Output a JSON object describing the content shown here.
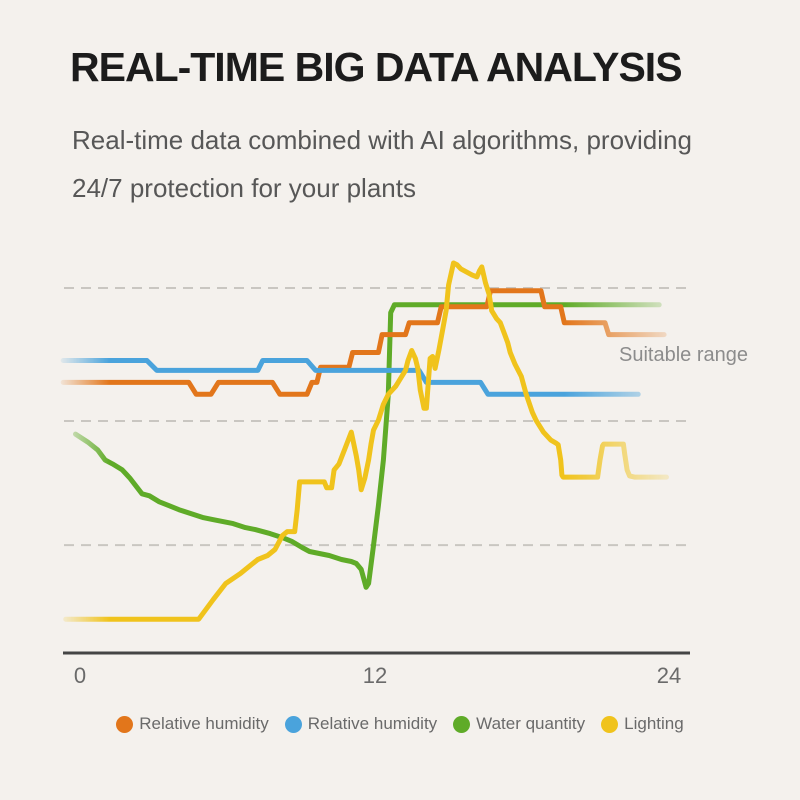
{
  "header": {
    "title": "REAL-TIME BIG DATA ANALYSIS",
    "subtitle_line1": "Real-time data combined with AI algorithms, providing",
    "subtitle_line2": "24/7 protection for your plants"
  },
  "colors": {
    "background": "#f4f1ed",
    "title": "#1c1c1c",
    "subtitle": "#575757",
    "gridline": "#c9c6c1",
    "axis": "#454545",
    "tick_labels": "#6a6a6a",
    "legend_text": "#6a6a6a",
    "annotation_text": "#8c8c8c"
  },
  "chart_data": {
    "type": "line",
    "title": "",
    "xlabel": "",
    "ylabel": "",
    "x_axis": {
      "tick_labels": [
        "0",
        "12",
        "24"
      ],
      "range_hours": [
        0,
        24
      ]
    },
    "y_axis": {
      "visible": false,
      "unit": "percent-of-plot-height",
      "range": [
        0,
        100
      ]
    },
    "grid": "dashed-horizontal",
    "gridlines_pct": [
      91.7,
      58.3,
      27.1
    ],
    "annotation": "Suitable range",
    "legend_position": "bottom",
    "edge_fade": true,
    "series": [
      {
        "name": "Relative humidity",
        "color": "#E2761B",
        "points": [
          [
            -0.6,
            68
          ],
          [
            4.5,
            68
          ],
          [
            4.8,
            65
          ],
          [
            5.4,
            65
          ],
          [
            5.7,
            68
          ],
          [
            7.9,
            68
          ],
          [
            8.2,
            65
          ],
          [
            9.3,
            65
          ],
          [
            9.5,
            68
          ],
          [
            9.7,
            68
          ],
          [
            9.85,
            71.8
          ],
          [
            11.0,
            71.8
          ],
          [
            11.15,
            75.5
          ],
          [
            12.2,
            75.5
          ],
          [
            12.35,
            80
          ],
          [
            13.3,
            80
          ],
          [
            13.45,
            83
          ],
          [
            14.6,
            83
          ],
          [
            14.75,
            87
          ],
          [
            16.6,
            87
          ],
          [
            16.75,
            91
          ],
          [
            18.8,
            91
          ],
          [
            18.95,
            87
          ],
          [
            19.6,
            87
          ],
          [
            19.75,
            83
          ],
          [
            21.4,
            83
          ],
          [
            21.55,
            80
          ],
          [
            23.8,
            80
          ]
        ]
      },
      {
        "name": "Relative humidity",
        "color": "#4AA3DC",
        "points": [
          [
            -0.6,
            73.5
          ],
          [
            2.8,
            73.5
          ],
          [
            3.2,
            71
          ],
          [
            7.3,
            71
          ],
          [
            7.5,
            73.5
          ],
          [
            9.3,
            73.5
          ],
          [
            9.65,
            71
          ],
          [
            13.85,
            71
          ],
          [
            14.15,
            68
          ],
          [
            16.35,
            68
          ],
          [
            16.65,
            65
          ],
          [
            22.75,
            65
          ]
        ]
      },
      {
        "name": "Water quantity",
        "color": "#5FAB28",
        "points": [
          [
            -0.1,
            55
          ],
          [
            0.4,
            53
          ],
          [
            0.8,
            51
          ],
          [
            1.1,
            48.5
          ],
          [
            1.4,
            47.5
          ],
          [
            1.8,
            46
          ],
          [
            2.1,
            44
          ],
          [
            2.6,
            40
          ],
          [
            2.9,
            39.5
          ],
          [
            3.3,
            38
          ],
          [
            3.7,
            37
          ],
          [
            4.1,
            36
          ],
          [
            5.1,
            34
          ],
          [
            5.5,
            33.5
          ],
          [
            6.3,
            32.5
          ],
          [
            6.8,
            31.5
          ],
          [
            7.2,
            31
          ],
          [
            7.8,
            30
          ],
          [
            8.3,
            29
          ],
          [
            8.7,
            28
          ],
          [
            9.1,
            26.5
          ],
          [
            9.4,
            25.5
          ],
          [
            9.8,
            25
          ],
          [
            10.2,
            24.5
          ],
          [
            10.7,
            23.5
          ],
          [
            11.1,
            23
          ],
          [
            11.3,
            22.5
          ],
          [
            11.5,
            21
          ],
          [
            11.7,
            16.5
          ],
          [
            11.8,
            17.5
          ],
          [
            12.0,
            27
          ],
          [
            12.2,
            37
          ],
          [
            12.4,
            48.5
          ],
          [
            12.6,
            65
          ],
          [
            12.7,
            85.5
          ],
          [
            12.85,
            87.5
          ],
          [
            23.6,
            87.5
          ]
        ]
      },
      {
        "name": "Lighting",
        "color": "#F0C31C",
        "points": [
          [
            -0.5,
            8.5
          ],
          [
            4.9,
            8.5
          ],
          [
            5.5,
            13.5
          ],
          [
            6.0,
            17.5
          ],
          [
            6.6,
            20
          ],
          [
            6.8,
            21
          ],
          [
            7.3,
            23.5
          ],
          [
            7.7,
            24.5
          ],
          [
            8.0,
            26
          ],
          [
            8.3,
            29.5
          ],
          [
            8.5,
            30.5
          ],
          [
            8.8,
            30.5
          ],
          [
            8.9,
            36
          ],
          [
            9.0,
            43
          ],
          [
            10.0,
            43
          ],
          [
            10.1,
            41.5
          ],
          [
            10.3,
            41.5
          ],
          [
            10.4,
            46
          ],
          [
            10.6,
            47.5
          ],
          [
            10.85,
            51.5
          ],
          [
            11.1,
            55.5
          ],
          [
            11.3,
            49.5
          ],
          [
            11.4,
            46
          ],
          [
            11.5,
            41
          ],
          [
            11.65,
            44
          ],
          [
            11.8,
            48.5
          ],
          [
            11.9,
            52.5
          ],
          [
            12.0,
            56
          ],
          [
            12.2,
            58.5
          ],
          [
            12.4,
            62.5
          ],
          [
            12.6,
            65
          ],
          [
            12.9,
            67
          ],
          [
            13.0,
            68
          ],
          [
            13.2,
            70
          ],
          [
            13.3,
            71
          ],
          [
            13.4,
            73.5
          ],
          [
            13.55,
            76
          ],
          [
            13.7,
            74
          ],
          [
            13.8,
            71.5
          ],
          [
            13.9,
            66
          ],
          [
            14.05,
            61.5
          ],
          [
            14.15,
            61.5
          ],
          [
            14.3,
            74
          ],
          [
            14.4,
            74.5
          ],
          [
            14.5,
            71.5
          ],
          [
            14.65,
            76
          ],
          [
            14.8,
            81
          ],
          [
            14.95,
            86
          ],
          [
            15.05,
            92.5
          ],
          [
            15.25,
            98
          ],
          [
            15.4,
            97.5
          ],
          [
            15.55,
            96.5
          ],
          [
            15.7,
            96
          ],
          [
            15.85,
            95.5
          ],
          [
            16.0,
            95
          ],
          [
            16.2,
            94.5
          ],
          [
            16.3,
            96
          ],
          [
            16.4,
            97
          ],
          [
            16.55,
            93
          ],
          [
            16.7,
            90
          ],
          [
            16.8,
            86
          ],
          [
            17.0,
            84
          ],
          [
            17.15,
            83
          ],
          [
            17.3,
            80.5
          ],
          [
            17.45,
            78
          ],
          [
            17.55,
            75.5
          ],
          [
            17.75,
            72.5
          ],
          [
            18.0,
            69.5
          ],
          [
            18.2,
            65
          ],
          [
            18.45,
            60.5
          ],
          [
            18.6,
            58.5
          ],
          [
            18.9,
            55.5
          ],
          [
            19.2,
            53.5
          ],
          [
            19.4,
            52.8
          ],
          [
            19.5,
            52.3
          ],
          [
            19.6,
            48.5
          ],
          [
            19.65,
            44.7
          ],
          [
            19.7,
            44.2
          ],
          [
            21.1,
            44.2
          ],
          [
            21.2,
            48.5
          ],
          [
            21.3,
            52
          ],
          [
            21.35,
            52.5
          ],
          [
            22.15,
            52.5
          ],
          [
            22.2,
            50
          ],
          [
            22.3,
            46
          ],
          [
            22.4,
            44.5
          ],
          [
            22.6,
            44.2
          ],
          [
            23.9,
            44.2
          ]
        ]
      }
    ]
  }
}
